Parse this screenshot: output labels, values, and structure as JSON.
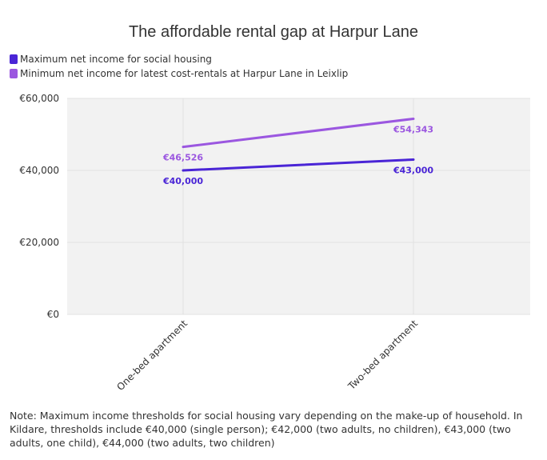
{
  "chart_data": {
    "type": "line",
    "title": "The affordable rental gap at Harpur Lane",
    "categories": [
      "One-bed apartment",
      "Two-bed apartment"
    ],
    "series": [
      {
        "name": "Maximum net income for social housing",
        "values": [
          40000,
          43000
        ],
        "labels": [
          "€40,000",
          "€43,000"
        ],
        "color": "#4a25d6"
      },
      {
        "name": "Minimum net income for latest cost-rentals at Harpur Lane in Leixlip",
        "values": [
          46526,
          54343
        ],
        "labels": [
          "€46,526",
          "€54,343"
        ],
        "color": "#9b57e0"
      }
    ],
    "yticks": [
      0,
      20000,
      40000,
      60000
    ],
    "ytick_labels": [
      "€0",
      "€20,000",
      "€40,000",
      "€60,000"
    ],
    "ylim": [
      0,
      60000
    ],
    "grid": true,
    "legend_position": "top-left"
  },
  "note": "Note: Maximum income thresholds for social housing vary depending on the make-up of household. In Kildare, thresholds include €40,000 (single person); €42,000 (two adults, no children), €43,000 (two adults, one child), €44,000 (two adults, two children)"
}
